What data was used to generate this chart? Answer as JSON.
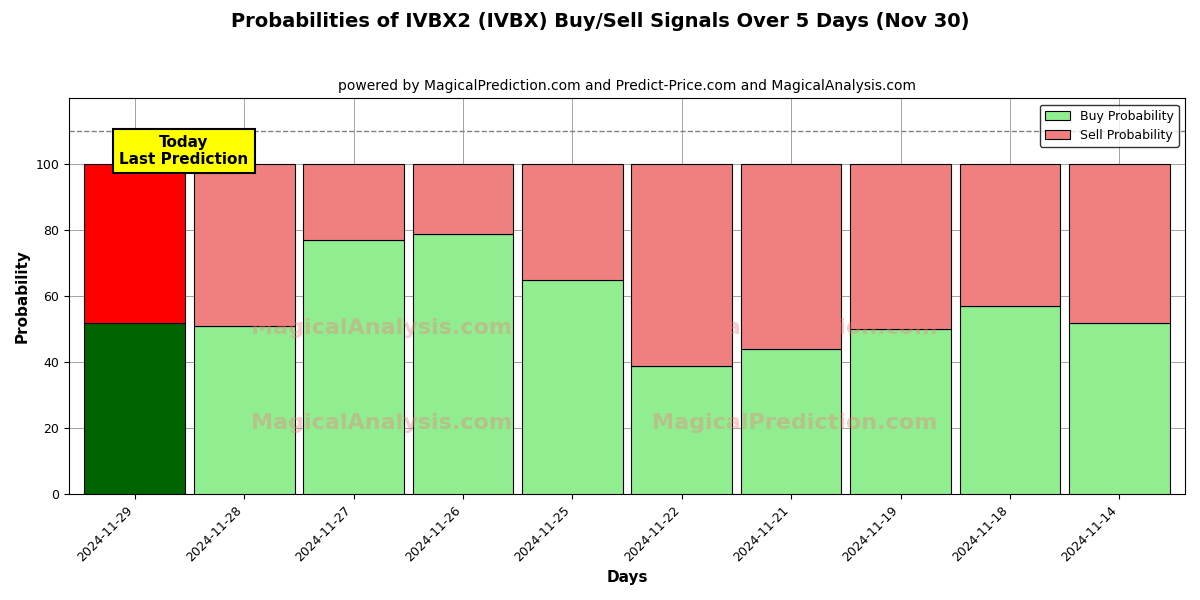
{
  "title": "Probabilities of IVBX2 (IVBX) Buy/Sell Signals Over 5 Days (Nov 30)",
  "subtitle": "powered by MagicalPrediction.com and Predict-Price.com and MagicalAnalysis.com",
  "xlabel": "Days",
  "ylabel": "Probability",
  "categories": [
    "2024-11-29",
    "2024-11-28",
    "2024-11-27",
    "2024-11-26",
    "2024-11-25",
    "2024-11-22",
    "2024-11-21",
    "2024-11-19",
    "2024-11-18",
    "2024-11-14"
  ],
  "buy_values": [
    52,
    51,
    77,
    79,
    65,
    39,
    44,
    50,
    57,
    52
  ],
  "sell_values": [
    48,
    49,
    23,
    21,
    35,
    61,
    56,
    50,
    43,
    48
  ],
  "today_bar_index": 0,
  "buy_color_today": "#006400",
  "sell_color_today": "#FF0000",
  "buy_color_normal": "#90EE90",
  "sell_color_normal": "#F08080",
  "bar_edge_color": "#000000",
  "ylim": [
    0,
    120
  ],
  "yticks": [
    0,
    20,
    40,
    60,
    80,
    100
  ],
  "dashed_line_y": 110,
  "legend_buy_label": "Buy Probability",
  "legend_sell_label": "Sell Probability",
  "today_label": "Today\nLast Prediction",
  "figsize": [
    12.0,
    6.0
  ],
  "dpi": 100,
  "title_fontsize": 14,
  "subtitle_fontsize": 10,
  "axis_label_fontsize": 11,
  "tick_fontsize": 9,
  "legend_fontsize": 9,
  "bar_width": 0.92
}
